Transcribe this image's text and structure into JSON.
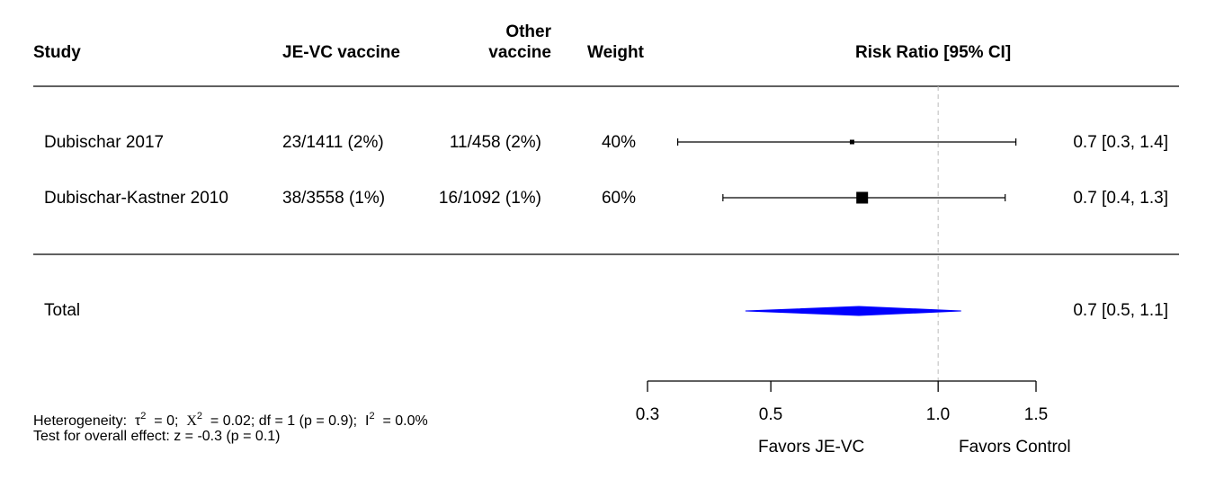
{
  "headers": {
    "study": "Study",
    "jevc": "JE-VC vaccine",
    "other_line1": "Other",
    "other_line2": "vaccine",
    "weight": "Weight",
    "rr": "Risk Ratio [95% CI]"
  },
  "total": {
    "label": "Total",
    "ci_text": "0.7 [0.5, 1.1]"
  },
  "footer": {
    "heterogeneity_label": "Heterogeneity:",
    "tau": "τ",
    "tau_exp": "2",
    "tau_value": "= 0;",
    "chi": "Χ",
    "chi_exp": "2",
    "chi_value": "= 0.02; df = 1 (p = 0.9);",
    "i": "I",
    "i_exp": "2",
    "i_value": "= 0.0%",
    "overall_effect": "Test for overall effect: z = -0.3 (p = 0.1)"
  },
  "chart_data": {
    "type": "forest",
    "measure": "Risk Ratio",
    "x_scale": "log",
    "xlim": [
      0.3,
      1.5
    ],
    "ticks": [
      0.3,
      0.5,
      1.0,
      1.5
    ],
    "tick_labels": [
      "0.3",
      "0.5",
      "1.0",
      "1.5"
    ],
    "reference_line": 1.0,
    "favors_left": "Favors JE-VC",
    "favors_right": "Favors Control",
    "studies": [
      {
        "name": "Dubischar 2017",
        "jevc": "23/1411 (2%)",
        "other": "11/458 (2%)",
        "weight_label": "40%",
        "weight": 40,
        "rr": 0.7,
        "ci_low": 0.34,
        "ci_high": 1.38,
        "ci_text": "0.7 [0.3, 1.4]"
      },
      {
        "name": "Dubischar-Kastner 2010",
        "jevc": "38/3558 (1%)",
        "other": "16/1092 (1%)",
        "weight_label": "60%",
        "weight": 60,
        "rr": 0.73,
        "ci_low": 0.41,
        "ci_high": 1.32,
        "ci_text": "0.7 [0.4, 1.3]"
      }
    ],
    "pooled": {
      "rr": 0.72,
      "ci_low": 0.45,
      "ci_high": 1.1
    }
  }
}
